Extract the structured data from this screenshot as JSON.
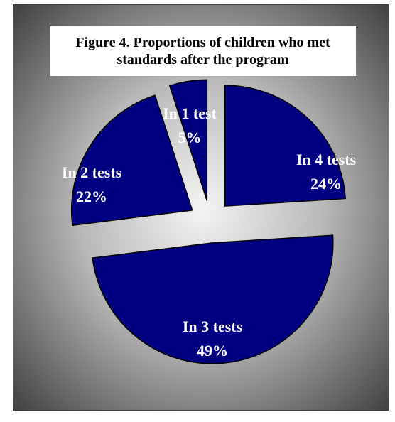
{
  "title_lines": [
    "Figure 4. Proportions of children who met",
    "standards after the program"
  ],
  "colors": {
    "slice_fill": "#000080",
    "slice_stroke": "#000000",
    "label": "#ffffff",
    "background_center": "#f2f2f2",
    "background_edge": "#3a3a3a"
  },
  "chart_data": {
    "type": "pie",
    "title": "Figure 4. Proportions of children who met standards after the program",
    "exploded": true,
    "slices": [
      {
        "name": "In 4 tests",
        "label": "In 4 tests",
        "percent_label": "24%",
        "value": 24
      },
      {
        "name": "In 3 tests",
        "label": "In 3 tests",
        "percent_label": "49%",
        "value": 49
      },
      {
        "name": "In 2 tests",
        "label": "In 2 tests",
        "percent_label": "22%",
        "value": 22
      },
      {
        "name": "In 1 test",
        "label": "In 1 test",
        "percent_label": "5%",
        "value": 5
      }
    ],
    "legend": "none"
  }
}
